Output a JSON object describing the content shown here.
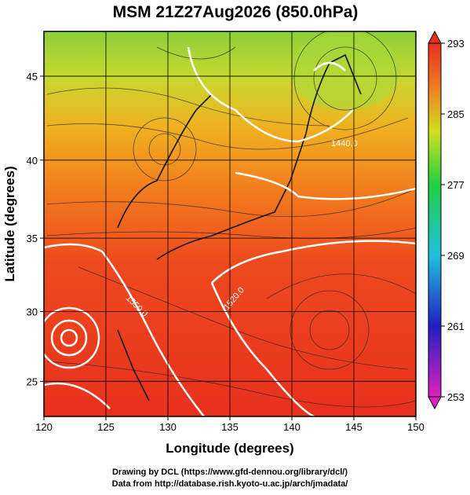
{
  "chart_data": {
    "type": "map",
    "title": "MSM 21Z27Aug2026 (850.0hPa)",
    "x_label": "Longitude (degrees)",
    "y_label": "Latitude  (degrees)",
    "xlim": [
      120,
      150
    ],
    "ylim": [
      22.4,
      47.5
    ],
    "xticks": [
      120,
      125,
      130,
      135,
      140,
      145,
      150
    ],
    "yticks": [
      25,
      30,
      35,
      40,
      45
    ],
    "grid": true,
    "colorbar": {
      "lim": [
        253,
        293
      ],
      "ticks": [
        253,
        261,
        269,
        277,
        285,
        293
      ]
    },
    "contour_labels": [
      "1550.0",
      "1520.0",
      "1440.0"
    ],
    "credits": [
      "Drawing by DCL (https://www.gfd-dennou.org/library/dcl/)",
      "Data from http://database.rish.kyoto-u.ac.jp/arch/jmadata/"
    ]
  }
}
